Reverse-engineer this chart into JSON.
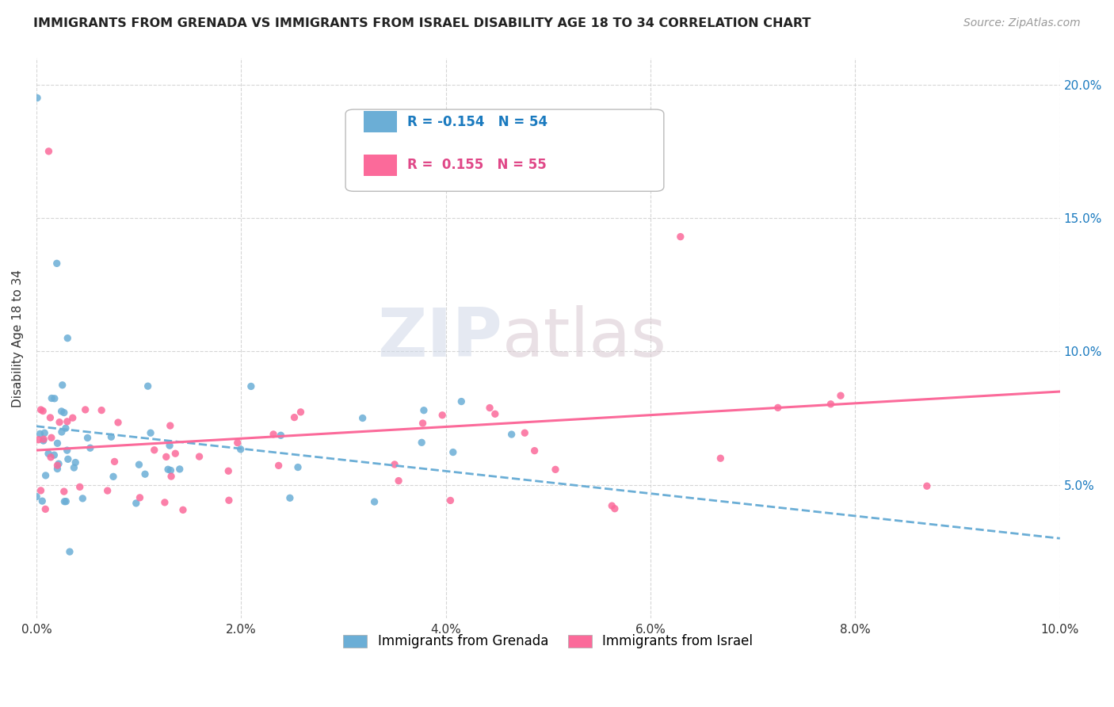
{
  "title": "IMMIGRANTS FROM GRENADA VS IMMIGRANTS FROM ISRAEL DISABILITY AGE 18 TO 34 CORRELATION CHART",
  "source_text": "Source: ZipAtlas.com",
  "ylabel": "Disability Age 18 to 34",
  "xlim": [
    0.0,
    0.1
  ],
  "ylim": [
    0.0,
    0.21
  ],
  "xtick_labels": [
    "0.0%",
    "2.0%",
    "4.0%",
    "6.0%",
    "8.0%",
    "10.0%"
  ],
  "xtick_vals": [
    0.0,
    0.02,
    0.04,
    0.06,
    0.08,
    0.1
  ],
  "ytick_labels": [
    "5.0%",
    "10.0%",
    "15.0%",
    "20.0%"
  ],
  "ytick_vals": [
    0.05,
    0.1,
    0.15,
    0.2
  ],
  "grenada_color": "#6baed6",
  "israel_color": "#fb6a9a",
  "grenada_R": -0.154,
  "grenada_N": 54,
  "israel_R": 0.155,
  "israel_N": 55,
  "legend_label_grenada": "Immigrants from Grenada",
  "legend_label_israel": "Immigrants from Israel",
  "watermark_zip": "ZIP",
  "watermark_atlas": "atlas",
  "background_color": "#ffffff",
  "grid_color": "#cccccc",
  "right_tick_color": "#1a7abf",
  "grenada_line_x": [
    0.0,
    0.1
  ],
  "grenada_line_y": [
    0.072,
    0.03
  ],
  "israel_line_x": [
    0.0,
    0.1
  ],
  "israel_line_y": [
    0.063,
    0.085
  ]
}
